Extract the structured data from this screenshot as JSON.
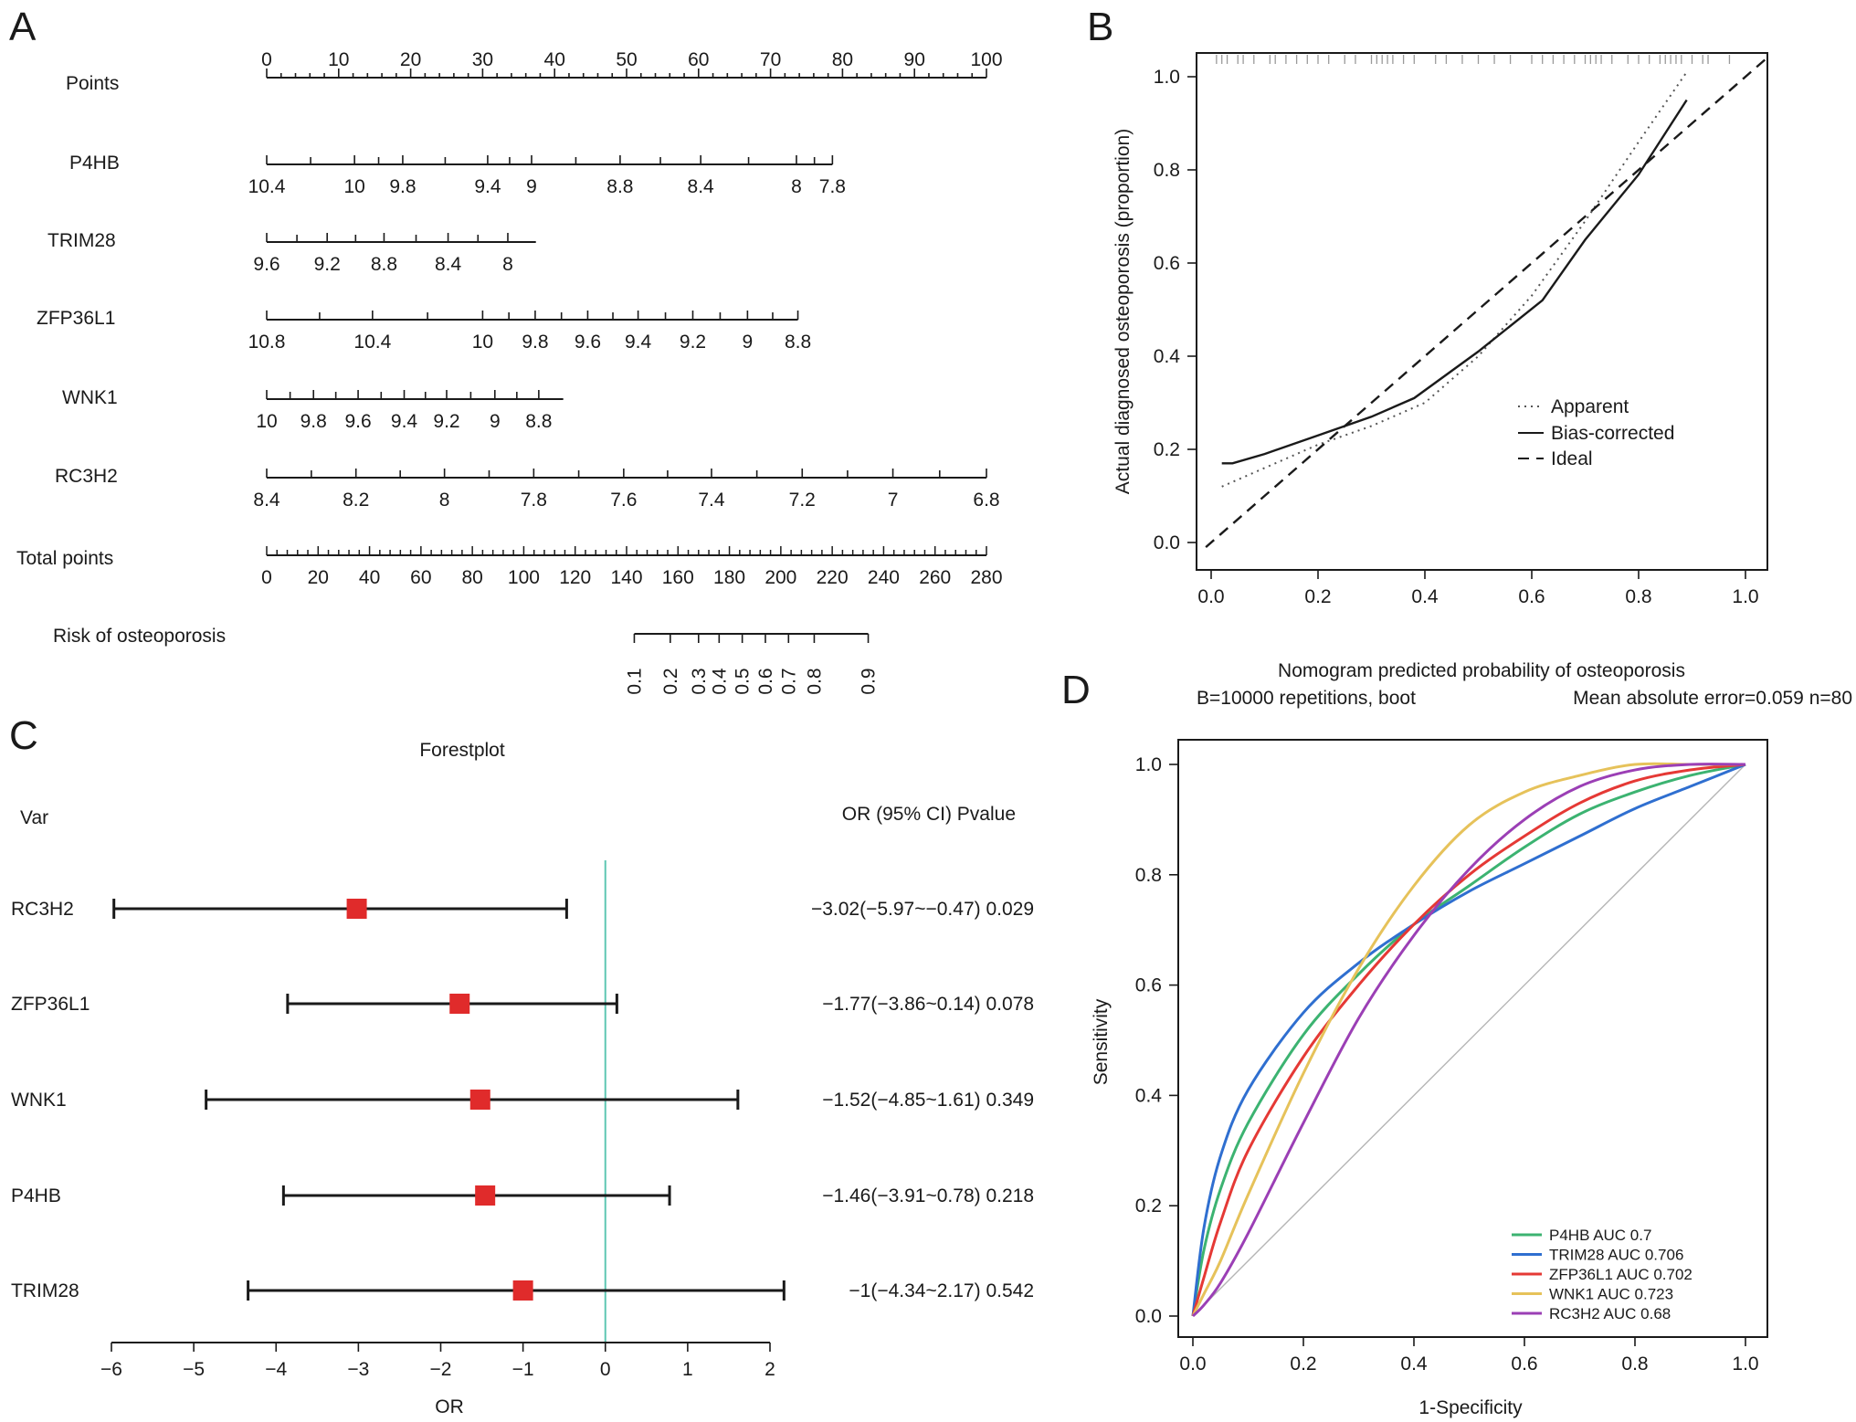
{
  "panels": {
    "A": "A",
    "B": "B",
    "C": "C",
    "D": "D"
  },
  "chart_data": [
    {
      "type": "nomogram",
      "panel": "A",
      "scales": [
        {
          "name": "Points",
          "ticks": [
            "0",
            "10",
            "20",
            "30",
            "40",
            "50",
            "60",
            "70",
            "80",
            "90",
            "100"
          ],
          "tick_values": [
            0,
            10,
            20,
            30,
            40,
            50,
            60,
            70,
            80,
            90,
            100
          ],
          "min": 0,
          "max": 100
        },
        {
          "name": "P4HB",
          "ticks": [
            "10.4",
            "10",
            "9.8",
            "9.4",
            "9",
            "8.8",
            "8.4",
            "8",
            "7.8"
          ],
          "tick_values": [
            0,
            12.2,
            18.9,
            30.7,
            36.8,
            49.1,
            60.3,
            73.6,
            78.6
          ],
          "min": 0,
          "max": 78.6
        },
        {
          "name": "TRIM28",
          "ticks": [
            "9.6",
            "9.2",
            "8.8",
            "8.4",
            "8"
          ],
          "tick_values": [
            0,
            8.4,
            16.3,
            25.2,
            33.5
          ],
          "min": 0,
          "max": 37.4
        },
        {
          "name": "ZFP36L1",
          "ticks": [
            "10.8",
            "10.4",
            "10",
            "9.8",
            "9.6",
            "9.4",
            "9.2",
            "9",
            "8.8"
          ],
          "tick_values": [
            0,
            14.7,
            30.0,
            37.3,
            44.6,
            51.6,
            59.2,
            66.8,
            73.8
          ],
          "min": 0,
          "max": 73.8
        },
        {
          "name": "WNK1",
          "ticks": [
            "10",
            "9.8",
            "9.6",
            "9.4",
            "9.2",
            "9",
            "8.8"
          ],
          "tick_values": [
            0,
            6.5,
            12.7,
            19.1,
            25.0,
            31.7,
            37.8
          ],
          "min": 0,
          "max": 41.2
        },
        {
          "name": "RC3H2",
          "ticks": [
            "8.4",
            "8.2",
            "8",
            "7.8",
            "7.6",
            "7.4",
            "7.2",
            "7",
            "6.8"
          ],
          "tick_values": [
            0,
            12.4,
            24.7,
            37.1,
            49.6,
            61.8,
            74.4,
            87.0,
            100
          ],
          "min": 0,
          "max": 100
        }
      ],
      "total_points": {
        "name": "Total points",
        "ticks": [
          "0",
          "20",
          "40",
          "60",
          "80",
          "100",
          "120",
          "140",
          "160",
          "180",
          "200",
          "220",
          "240",
          "260",
          "280"
        ],
        "tick_values": [
          0,
          20,
          40,
          60,
          80,
          100,
          120,
          140,
          160,
          180,
          200,
          220,
          240,
          260,
          280
        ],
        "min": 0,
        "max": 280
      },
      "risk": {
        "name": "Risk of osteoporosis",
        "ticks": [
          "0.1",
          "0.2",
          "0.3",
          "0.4",
          "0.5",
          "0.6",
          "0.7",
          "0.8",
          "0.9"
        ],
        "total_points_at": [
          143,
          157,
          168,
          176,
          185,
          194,
          203,
          213,
          234
        ]
      }
    },
    {
      "type": "line",
      "panel": "B",
      "xlabel": "Nomogram predicted probability of osteoporosis",
      "ylabel": "Actual diagnosed osteoporosis (proportion)",
      "subtitle_left": "B=10000 repetitions, boot",
      "subtitle_right": "Mean absolute error=0.059 n=80",
      "xlim": [
        0,
        1.0
      ],
      "ylim": [
        0,
        1.0
      ],
      "xticks": [
        "0.0",
        "0.2",
        "0.4",
        "0.6",
        "0.8",
        "1.0"
      ],
      "yticks": [
        "0.0",
        "0.2",
        "0.4",
        "0.6",
        "0.8",
        "1.0"
      ],
      "legend": {
        "position": "bottom-right",
        "entries": [
          "Apparent",
          "Bias-corrected",
          "Ideal"
        ]
      },
      "series": [
        {
          "name": "Apparent",
          "style": "dotted",
          "x": [
            0.02,
            0.1,
            0.2,
            0.3,
            0.4,
            0.5,
            0.6,
            0.7,
            0.8,
            0.89
          ],
          "y": [
            0.12,
            0.16,
            0.21,
            0.25,
            0.3,
            0.4,
            0.53,
            0.69,
            0.86,
            1.01
          ]
        },
        {
          "name": "Bias-corrected",
          "style": "solid",
          "x": [
            0.02,
            0.04,
            0.1,
            0.2,
            0.3,
            0.38,
            0.5,
            0.62,
            0.7,
            0.8,
            0.89
          ],
          "y": [
            0.17,
            0.17,
            0.19,
            0.23,
            0.27,
            0.31,
            0.41,
            0.52,
            0.65,
            0.79,
            0.95
          ]
        },
        {
          "name": "Ideal",
          "style": "dashed",
          "x": [
            -0.01,
            1.04
          ],
          "y": [
            -0.01,
            1.04
          ]
        }
      ],
      "rug_x": [
        0.01,
        0.02,
        0.03,
        0.05,
        0.06,
        0.08,
        0.11,
        0.12,
        0.14,
        0.16,
        0.18,
        0.2,
        0.22,
        0.25,
        0.27,
        0.3,
        0.31,
        0.32,
        0.33,
        0.34,
        0.36,
        0.38,
        0.42,
        0.44,
        0.47,
        0.5,
        0.53,
        0.56,
        0.6,
        0.62,
        0.64,
        0.66,
        0.68,
        0.7,
        0.71,
        0.72,
        0.73,
        0.75,
        0.78,
        0.8,
        0.82,
        0.84,
        0.85,
        0.86,
        0.87,
        0.88,
        0.9,
        0.92,
        0.93,
        0.97
      ]
    },
    {
      "type": "forestplot",
      "panel": "C",
      "title": "Forestplot",
      "col_var": "Var",
      "col_or": "OR (95% CI) Pvalue",
      "xlabel": "OR",
      "xlim": [
        -6,
        2
      ],
      "xticks": [
        -6,
        -5,
        -4,
        -3,
        -2,
        -1,
        0,
        1,
        2
      ],
      "xtick_labels": [
        "−6",
        "−5",
        "−4",
        "−3",
        "−2",
        "−1",
        "0",
        "1",
        "2"
      ],
      "reference_line": 0,
      "rows": [
        {
          "var": "RC3H2",
          "est": -3.02,
          "lo": -5.97,
          "hi": -0.47,
          "text": "−3.02(−5.97~−0.47) 0.029"
        },
        {
          "var": "ZFP36L1",
          "est": -1.77,
          "lo": -3.86,
          "hi": 0.14,
          "text": "−1.77(−3.86~0.14) 0.078"
        },
        {
          "var": "WNK1",
          "est": -1.52,
          "lo": -4.85,
          "hi": 1.61,
          "text": "−1.52(−4.85~1.61) 0.349"
        },
        {
          "var": "P4HB",
          "est": -1.46,
          "lo": -3.91,
          "hi": 0.78,
          "text": "−1.46(−3.91~0.78) 0.218"
        },
        {
          "var": "TRIM28",
          "est": -1.0,
          "lo": -4.34,
          "hi": 2.17,
          "text": "−1(−4.34~2.17) 0.542"
        }
      ]
    },
    {
      "type": "line",
      "panel": "D",
      "xlabel": "1-Specificity",
      "ylabel": "Sensitivity",
      "xlim": [
        0,
        1.0
      ],
      "ylim": [
        0,
        1.0
      ],
      "xticks": [
        "0.0",
        "0.2",
        "0.4",
        "0.6",
        "0.8",
        "1.0"
      ],
      "yticks": [
        "0.0",
        "0.2",
        "0.4",
        "0.6",
        "0.8",
        "1.0"
      ],
      "legend": {
        "position": "bottom-right"
      },
      "series": [
        {
          "name": "P4HB",
          "label": "P4HB AUC 0.7",
          "color": "#3cb371",
          "x": [
            0,
            0.02,
            0.05,
            0.1,
            0.2,
            0.3,
            0.4,
            0.5,
            0.6,
            0.7,
            0.8,
            0.9,
            1.0
          ],
          "y": [
            0,
            0.12,
            0.23,
            0.35,
            0.51,
            0.62,
            0.71,
            0.78,
            0.85,
            0.91,
            0.95,
            0.98,
            1.0
          ]
        },
        {
          "name": "TRIM28",
          "label": "TRIM28 AUC 0.706",
          "color": "#2f6fd0",
          "x": [
            0,
            0.02,
            0.05,
            0.1,
            0.2,
            0.3,
            0.4,
            0.5,
            0.6,
            0.7,
            0.8,
            0.9,
            1.0
          ],
          "y": [
            0,
            0.16,
            0.29,
            0.41,
            0.55,
            0.64,
            0.71,
            0.77,
            0.82,
            0.87,
            0.92,
            0.96,
            1.0
          ]
        },
        {
          "name": "ZFP36L1",
          "label": "ZFP36L1 AUC 0.702",
          "color": "#e53935",
          "x": [
            0,
            0.02,
            0.05,
            0.1,
            0.2,
            0.3,
            0.4,
            0.5,
            0.6,
            0.7,
            0.8,
            0.9,
            1.0
          ],
          "y": [
            0,
            0.07,
            0.17,
            0.3,
            0.47,
            0.6,
            0.71,
            0.8,
            0.87,
            0.93,
            0.97,
            0.99,
            1.0
          ]
        },
        {
          "name": "WNK1",
          "label": "WNK1 AUC 0.723",
          "color": "#e6c25a",
          "x": [
            0,
            0.02,
            0.05,
            0.1,
            0.2,
            0.3,
            0.4,
            0.5,
            0.6,
            0.7,
            0.8,
            0.9,
            1.0
          ],
          "y": [
            0,
            0.04,
            0.1,
            0.22,
            0.44,
            0.63,
            0.78,
            0.89,
            0.95,
            0.98,
            1.0,
            1.0,
            1.0
          ]
        },
        {
          "name": "RC3H2",
          "label": "RC3H2 AUC 0.68",
          "color": "#9b3fb5",
          "x": [
            0,
            0.02,
            0.05,
            0.1,
            0.2,
            0.3,
            0.4,
            0.5,
            0.6,
            0.7,
            0.8,
            0.9,
            1.0
          ],
          "y": [
            0,
            0.02,
            0.06,
            0.15,
            0.35,
            0.54,
            0.69,
            0.81,
            0.9,
            0.96,
            0.99,
            1.0,
            1.0
          ]
        },
        {
          "name": "Reference",
          "label": "",
          "color": "#b5b5b5",
          "x": [
            0,
            1.0
          ],
          "y": [
            0,
            1.0
          ]
        }
      ]
    }
  ]
}
